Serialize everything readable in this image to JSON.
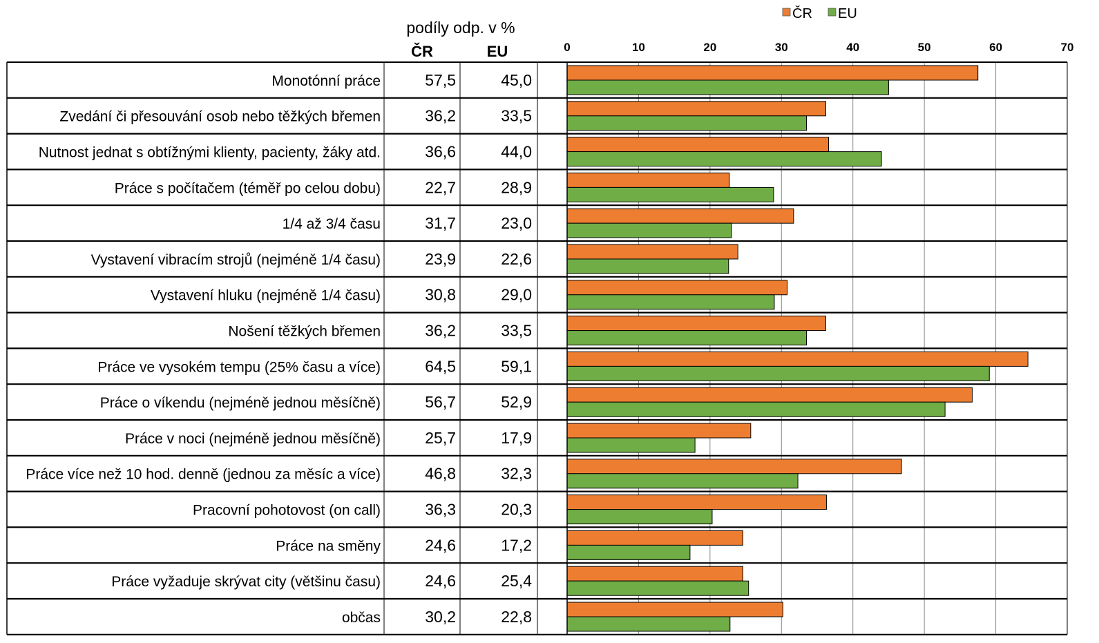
{
  "header": {
    "title": "podíly odp. v %",
    "col_cr": "ČR",
    "col_eu": "EU"
  },
  "colors": {
    "cr": "#ED7D31",
    "eu": "#70AD47"
  },
  "chart_data": {
    "type": "bar",
    "orientation": "horizontal",
    "xlim": [
      0,
      70
    ],
    "xticks": [
      "0",
      "10",
      "20",
      "30",
      "40",
      "50",
      "60",
      "70"
    ],
    "grid": true,
    "legend": "top",
    "categories": [
      "Monotónní práce",
      "Zvedání či přesouvání osob nebo těžkých břemen",
      "Nutnost jednat s obtížnými klienty, pacienty, žáky atd.",
      "Práce s počítačem (téměř po celou dobu)",
      "1/4 až 3/4 času",
      "Vystavení vibracím strojů (nejméně 1/4 času)",
      "Vystavení hluku (nejméně 1/4 času)",
      "Nošení těžkých břemen",
      "Práce ve vysokém tempu (25% času a více)",
      "Práce o víkendu (nejméně jednou měsíčně)",
      "Práce v noci (nejméně jednou měsíčně)",
      "Práce více než 10 hod. denně (jednou za měsíc a více)",
      "Pracovní pohotovost (on call)",
      "Práce na směny",
      "Práce vyžaduje skrývat city (většinu času)",
      "občas"
    ],
    "labels_printed": [
      "57,5",
      "45,0",
      "36,2",
      "33,5",
      "36,6",
      "44,0",
      "22,7",
      "28,9",
      "31,7",
      "23,0",
      "23,9",
      "22,6",
      "30,8",
      "29,0",
      "36,2",
      "33,5",
      "64,5",
      "59,1",
      "56,7",
      "52,9",
      "25,7",
      "17,9",
      "46,8",
      "32,3",
      "36,3",
      "20,3",
      "24,6",
      "17,2",
      "24,6",
      "25,4",
      "30,2",
      "22,8"
    ],
    "series": [
      {
        "name": "ČR",
        "values": [
          57.5,
          36.2,
          36.6,
          22.7,
          31.7,
          23.9,
          30.8,
          36.2,
          64.5,
          56.7,
          25.7,
          46.8,
          36.3,
          24.6,
          24.6,
          30.2
        ]
      },
      {
        "name": "EU",
        "values": [
          45.0,
          33.5,
          44.0,
          28.9,
          23.0,
          22.6,
          29.0,
          33.5,
          59.1,
          52.9,
          17.9,
          32.3,
          20.3,
          17.2,
          25.4,
          22.8
        ]
      }
    ]
  }
}
